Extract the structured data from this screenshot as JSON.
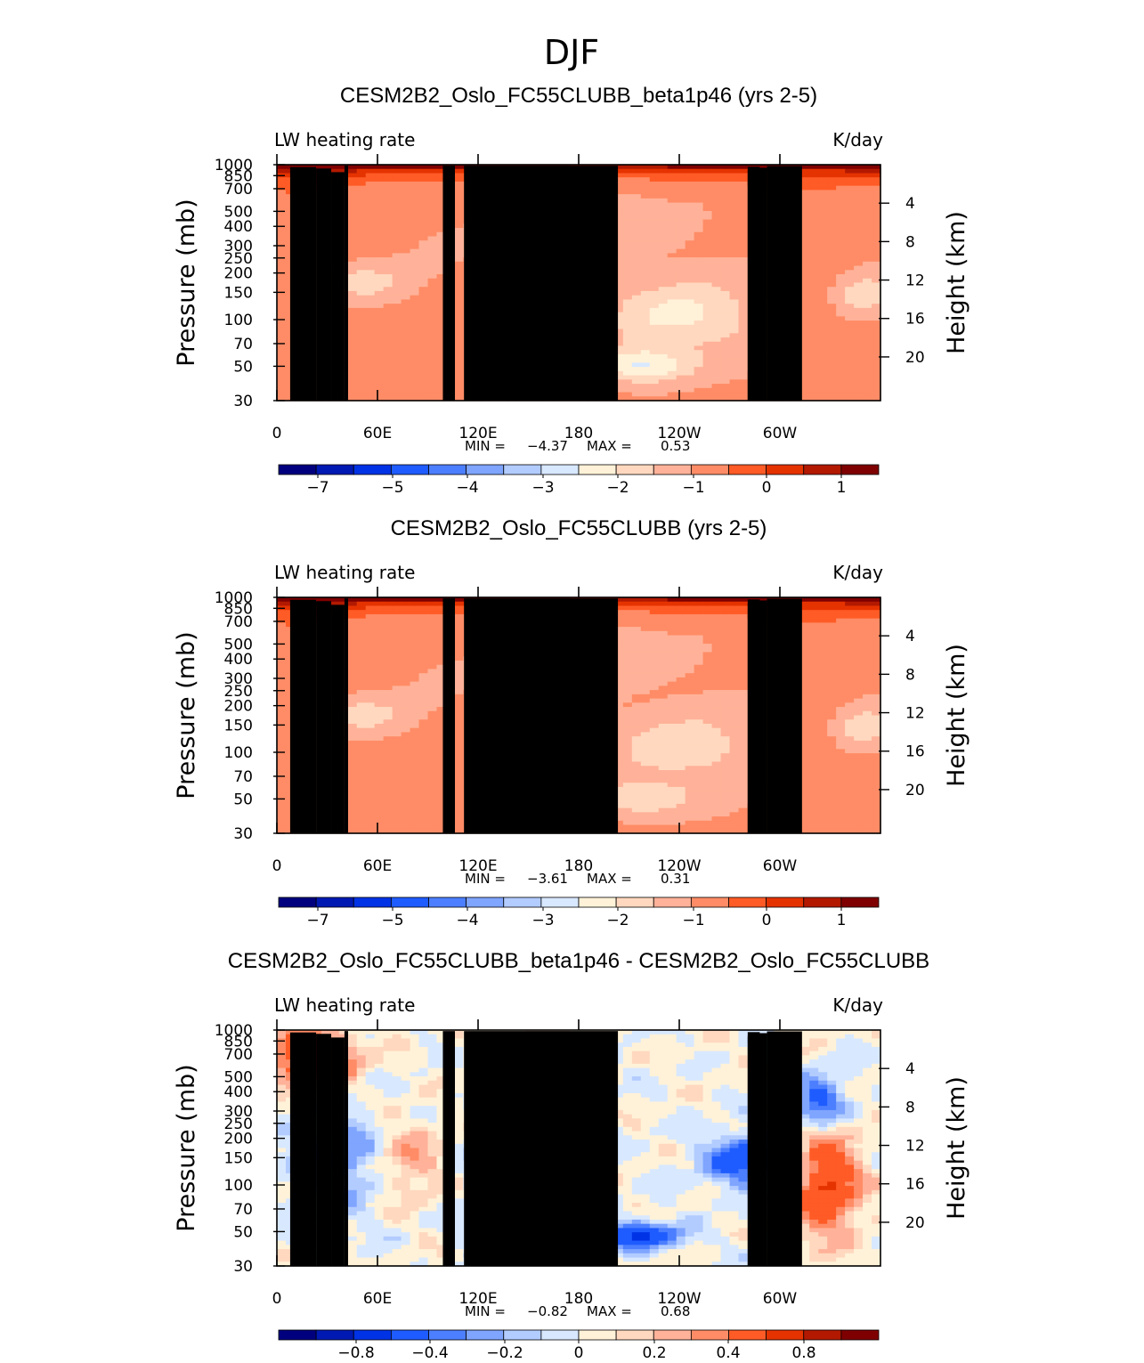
{
  "figure_title": "DJF",
  "colors": {
    "palette_ncl_BlueWhiteOrangeRed_16": [
      "#00007f",
      "#0019b2",
      "#0033e5",
      "#1f5cff",
      "#4c7fff",
      "#7fa5ff",
      "#b2ccff",
      "#d8e8ff",
      "#fff2d8",
      "#ffd8bf",
      "#ffb299",
      "#ff8c66",
      "#ff5b26",
      "#e53300",
      "#b21900",
      "#7f0000"
    ],
    "topography": "#000000",
    "background": "#ffffff"
  },
  "chart_data": [
    {
      "type": "heatmap",
      "title": "CESM2B2_Oslo_FC55CLUBB_beta1p46 (yrs 2-5)",
      "left_label": "LW heating rate",
      "right_label": "K/day",
      "ylabel": "Pressure (mb)",
      "ylabel_right": "Height (km)",
      "xlabel": "",
      "x_ticks": [
        "0",
        "60E",
        "120E",
        "180",
        "120W",
        "60W"
      ],
      "x_range_deg_east": [
        0,
        360
      ],
      "y_ticks_pressure": [
        "30",
        "50",
        "70",
        "100",
        "150",
        "200",
        "250",
        "300",
        "400",
        "500",
        "700",
        "850",
        "1000"
      ],
      "y_ticks_height": [
        "20",
        "16",
        "12",
        "8",
        "4"
      ],
      "y_range_mb": [
        1000,
        30
      ],
      "stats": {
        "min_label": "MIN =",
        "min": "-4.37",
        "max_label": "MAX =",
        "max": "0.53"
      },
      "colorbar_labels": [
        "−7",
        "−5",
        "−4",
        "−3",
        "−2",
        "−1",
        "0",
        "1"
      ],
      "levels": [
        -7,
        -6,
        -5,
        -4.5,
        -4,
        -3.5,
        -3,
        -2.5,
        -2,
        -1.5,
        -1,
        -0.5,
        0,
        0.5,
        1
      ],
      "grid": false,
      "legend": "colorbar-bottom"
    },
    {
      "type": "heatmap",
      "title": "CESM2B2_Oslo_FC55CLUBB (yrs 2-5)",
      "left_label": "LW heating rate",
      "right_label": "K/day",
      "ylabel": "Pressure (mb)",
      "ylabel_right": "Height (km)",
      "xlabel": "",
      "x_ticks": [
        "0",
        "60E",
        "120E",
        "180",
        "120W",
        "60W"
      ],
      "x_range_deg_east": [
        0,
        360
      ],
      "y_ticks_pressure": [
        "30",
        "50",
        "70",
        "100",
        "150",
        "200",
        "250",
        "300",
        "400",
        "500",
        "700",
        "850",
        "1000"
      ],
      "y_ticks_height": [
        "20",
        "16",
        "12",
        "8",
        "4"
      ],
      "y_range_mb": [
        1000,
        30
      ],
      "stats": {
        "min_label": "MIN =",
        "min": "-3.61",
        "max_label": "MAX =",
        "max": "0.31"
      },
      "colorbar_labels": [
        "−7",
        "−5",
        "−4",
        "−3",
        "−2",
        "−1",
        "0",
        "1"
      ],
      "levels": [
        -7,
        -6,
        -5,
        -4.5,
        -4,
        -3.5,
        -3,
        -2.5,
        -2,
        -1.5,
        -1,
        -0.5,
        0,
        0.5,
        1
      ],
      "grid": false,
      "legend": "colorbar-bottom"
    },
    {
      "type": "heatmap",
      "title": "CESM2B2_Oslo_FC55CLUBB_beta1p46 - CESM2B2_Oslo_FC55CLUBB",
      "left_label": "LW heating rate",
      "right_label": "K/day",
      "ylabel": "Pressure (mb)",
      "ylabel_right": "Height (km)",
      "xlabel": "",
      "x_ticks": [
        "0",
        "60E",
        "120E",
        "180",
        "120W",
        "60W"
      ],
      "x_range_deg_east": [
        0,
        360
      ],
      "y_ticks_pressure": [
        "30",
        "50",
        "70",
        "100",
        "150",
        "200",
        "250",
        "300",
        "400",
        "500",
        "700",
        "850",
        "1000"
      ],
      "y_ticks_height": [
        "20",
        "16",
        "12",
        "8",
        "4"
      ],
      "y_range_mb": [
        1000,
        30
      ],
      "stats": {
        "min_label": "MIN =",
        "min": "-0.82",
        "max_label": "MAX =",
        "max": "0.68"
      },
      "colorbar_labels": [
        "−0.8",
        "−0.4",
        "−0.2",
        "0",
        "0.2",
        "0.4",
        "0.8"
      ],
      "levels": [
        -0.8,
        -0.6,
        -0.4,
        -0.3,
        -0.2,
        -0.1,
        0,
        0.1,
        0.2,
        0.3,
        0.4,
        0.6,
        0.8
      ],
      "grid": false,
      "legend": "colorbar-bottom"
    }
  ]
}
